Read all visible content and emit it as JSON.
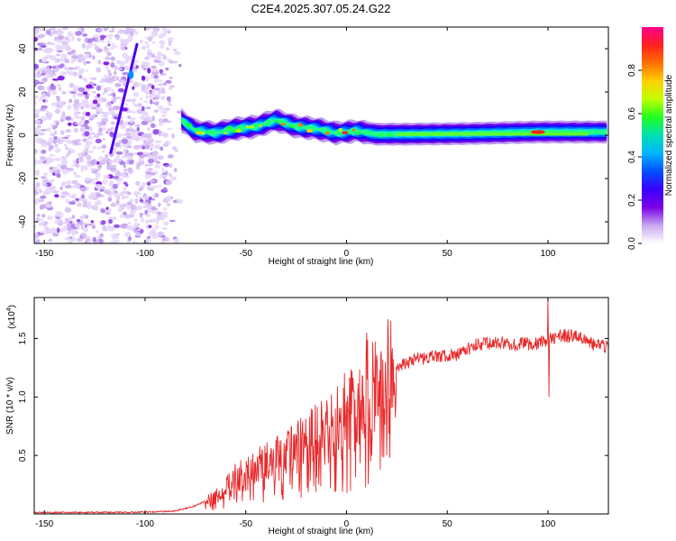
{
  "figure": {
    "title": "C2E4.2025.307.05.24.G22"
  },
  "chart_data": [
    {
      "type": "heatmap",
      "name": "spectrogram",
      "xlabel": "Height of straight line (km)",
      "ylabel": "Frequency (Hz)",
      "xlim": [
        -155,
        130
      ],
      "ylim": [
        -50,
        50
      ],
      "xticks": [
        -150,
        -100,
        -50,
        0,
        50,
        100
      ],
      "xtick_labels": [
        "-150",
        "-100",
        "-50",
        "0",
        "50",
        "100"
      ],
      "yticks": [
        -40,
        -20,
        0,
        20,
        40
      ],
      "ytick_labels": [
        "-40",
        "-20",
        "0",
        "20",
        "40"
      ],
      "colorbar": {
        "label": "Normalized spectral amplitude",
        "range": [
          0,
          1
        ],
        "ticks": [
          0.0,
          0.2,
          0.4,
          0.6,
          0.8
        ],
        "tick_labels": [
          "0.0",
          "0.2",
          "0.4",
          "0.6",
          "0.8"
        ],
        "colors": [
          "#ffffff",
          "#c8a8f0",
          "#7a00e6",
          "#3c00ff",
          "#0050ff",
          "#00b4ff",
          "#00e0b0",
          "#20ff20",
          "#c0ff00",
          "#ffd000",
          "#ff7000",
          "#ff2020",
          "#ff0090"
        ]
      },
      "noise_region_x": [
        -155,
        -82
      ],
      "signal_center_hz": [
        {
          "x": -82,
          "y": 7
        },
        {
          "x": -75,
          "y": 2
        },
        {
          "x": -65,
          "y": 1
        },
        {
          "x": -55,
          "y": 3
        },
        {
          "x": -45,
          "y": 4
        },
        {
          "x": -35,
          "y": 7
        },
        {
          "x": -25,
          "y": 4
        },
        {
          "x": -15,
          "y": 3
        },
        {
          "x": -5,
          "y": 1
        },
        {
          "x": 5,
          "y": 2
        },
        {
          "x": 15,
          "y": 0.5
        },
        {
          "x": 30,
          "y": 0.5
        },
        {
          "x": 60,
          "y": 0.8
        },
        {
          "x": 95,
          "y": 1.5
        },
        {
          "x": 130,
          "y": 1.5
        }
      ],
      "diagonal_streak": [
        {
          "x": -104,
          "y": 42
        },
        {
          "x": -117,
          "y": -8
        }
      ]
    },
    {
      "type": "line",
      "name": "snr",
      "xlabel": "Height of straight line (km)",
      "ylabel": "SNR (10 * v/v)",
      "y_multiplier_label": "(x10",
      "y_multiplier_exp": "4",
      "y_multiplier_close": ")",
      "xlim": [
        -155,
        130
      ],
      "ylim": [
        0,
        18500
      ],
      "xticks": [
        -150,
        -100,
        -50,
        0,
        50,
        100
      ],
      "xtick_labels": [
        "-150",
        "-100",
        "-50",
        "0",
        "50",
        "100"
      ],
      "yticks": [
        5000,
        10000,
        15000
      ],
      "ytick_labels": [
        "0.5",
        "1.0",
        "1.5"
      ],
      "color": "#e8282a",
      "envelope": [
        {
          "x": -155,
          "y": 120
        },
        {
          "x": -100,
          "y": 150
        },
        {
          "x": -85,
          "y": 250
        },
        {
          "x": -75,
          "y": 700
        },
        {
          "x": -65,
          "y": 1500
        },
        {
          "x": -55,
          "y": 3000
        },
        {
          "x": -45,
          "y": 4000
        },
        {
          "x": -35,
          "y": 4500
        },
        {
          "x": -25,
          "y": 5500
        },
        {
          "x": -15,
          "y": 6500
        },
        {
          "x": -5,
          "y": 8000
        },
        {
          "x": 5,
          "y": 9500
        },
        {
          "x": 15,
          "y": 11500
        },
        {
          "x": 25,
          "y": 12500
        },
        {
          "x": 35,
          "y": 13300
        },
        {
          "x": 45,
          "y": 13500
        },
        {
          "x": 55,
          "y": 13600
        },
        {
          "x": 65,
          "y": 14500
        },
        {
          "x": 75,
          "y": 14700
        },
        {
          "x": 85,
          "y": 14500
        },
        {
          "x": 95,
          "y": 14600
        },
        {
          "x": 105,
          "y": 15200
        },
        {
          "x": 115,
          "y": 15200
        },
        {
          "x": 122,
          "y": 14500
        },
        {
          "x": 130,
          "y": 14300
        }
      ],
      "spikes": [
        {
          "x": 10,
          "y": 15500
        },
        {
          "x": 12,
          "y": 4500
        },
        {
          "x": 100,
          "y": 18300
        },
        {
          "x": 100.5,
          "y": 10000
        }
      ]
    }
  ]
}
